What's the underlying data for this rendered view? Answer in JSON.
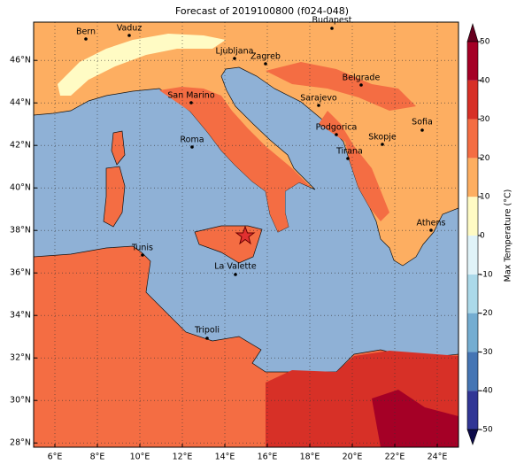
{
  "title": "Forecast of 2019100800 (f024-048)",
  "map": {
    "lon_range": [
      5,
      25
    ],
    "lat_range": [
      27.8,
      47.8
    ],
    "lon_ticks": [
      {
        "value": 6,
        "label": "6°E"
      },
      {
        "value": 8,
        "label": "8°E"
      },
      {
        "value": 10,
        "label": "10°E"
      },
      {
        "value": 12,
        "label": "12°E"
      },
      {
        "value": 14,
        "label": "14°E"
      },
      {
        "value": 16,
        "label": "16°E"
      },
      {
        "value": 18,
        "label": "18°E"
      },
      {
        "value": 20,
        "label": "20°E"
      },
      {
        "value": 22,
        "label": "22°E"
      },
      {
        "value": 24,
        "label": "24°E"
      }
    ],
    "lat_ticks": [
      {
        "value": 28,
        "label": "28°N"
      },
      {
        "value": 30,
        "label": "30°N"
      },
      {
        "value": 32,
        "label": "32°N"
      },
      {
        "value": 34,
        "label": "34°N"
      },
      {
        "value": 36,
        "label": "36°N"
      },
      {
        "value": 38,
        "label": "38°N"
      },
      {
        "value": 40,
        "label": "40°N"
      },
      {
        "value": 42,
        "label": "42°N"
      },
      {
        "value": 44,
        "label": "44°N"
      },
      {
        "value": 46,
        "label": "46°N"
      }
    ],
    "cities": [
      "Bern",
      "Vaduz",
      "Budapest",
      "Ljubljana",
      "Zagreb",
      "Belgrade",
      "San Marino",
      "Sarajevo",
      "Sofia",
      "Podgorica",
      "Skopje",
      "Roma",
      "Tirana",
      "Athens",
      "Tunis",
      "La Valette",
      "Tripoli"
    ]
  },
  "colorbar": {
    "label": "Max Temperature (°C)",
    "ticks": [
      -50,
      -40,
      -30,
      -20,
      -10,
      0,
      10,
      20,
      30,
      40,
      50
    ],
    "colors": [
      "#313695",
      "#4575b4",
      "#74add1",
      "#abd9e9",
      "#e0f3f8",
      "#fffbc4",
      "#fdae61",
      "#f46d43",
      "#d73027",
      "#a50026"
    ]
  }
}
